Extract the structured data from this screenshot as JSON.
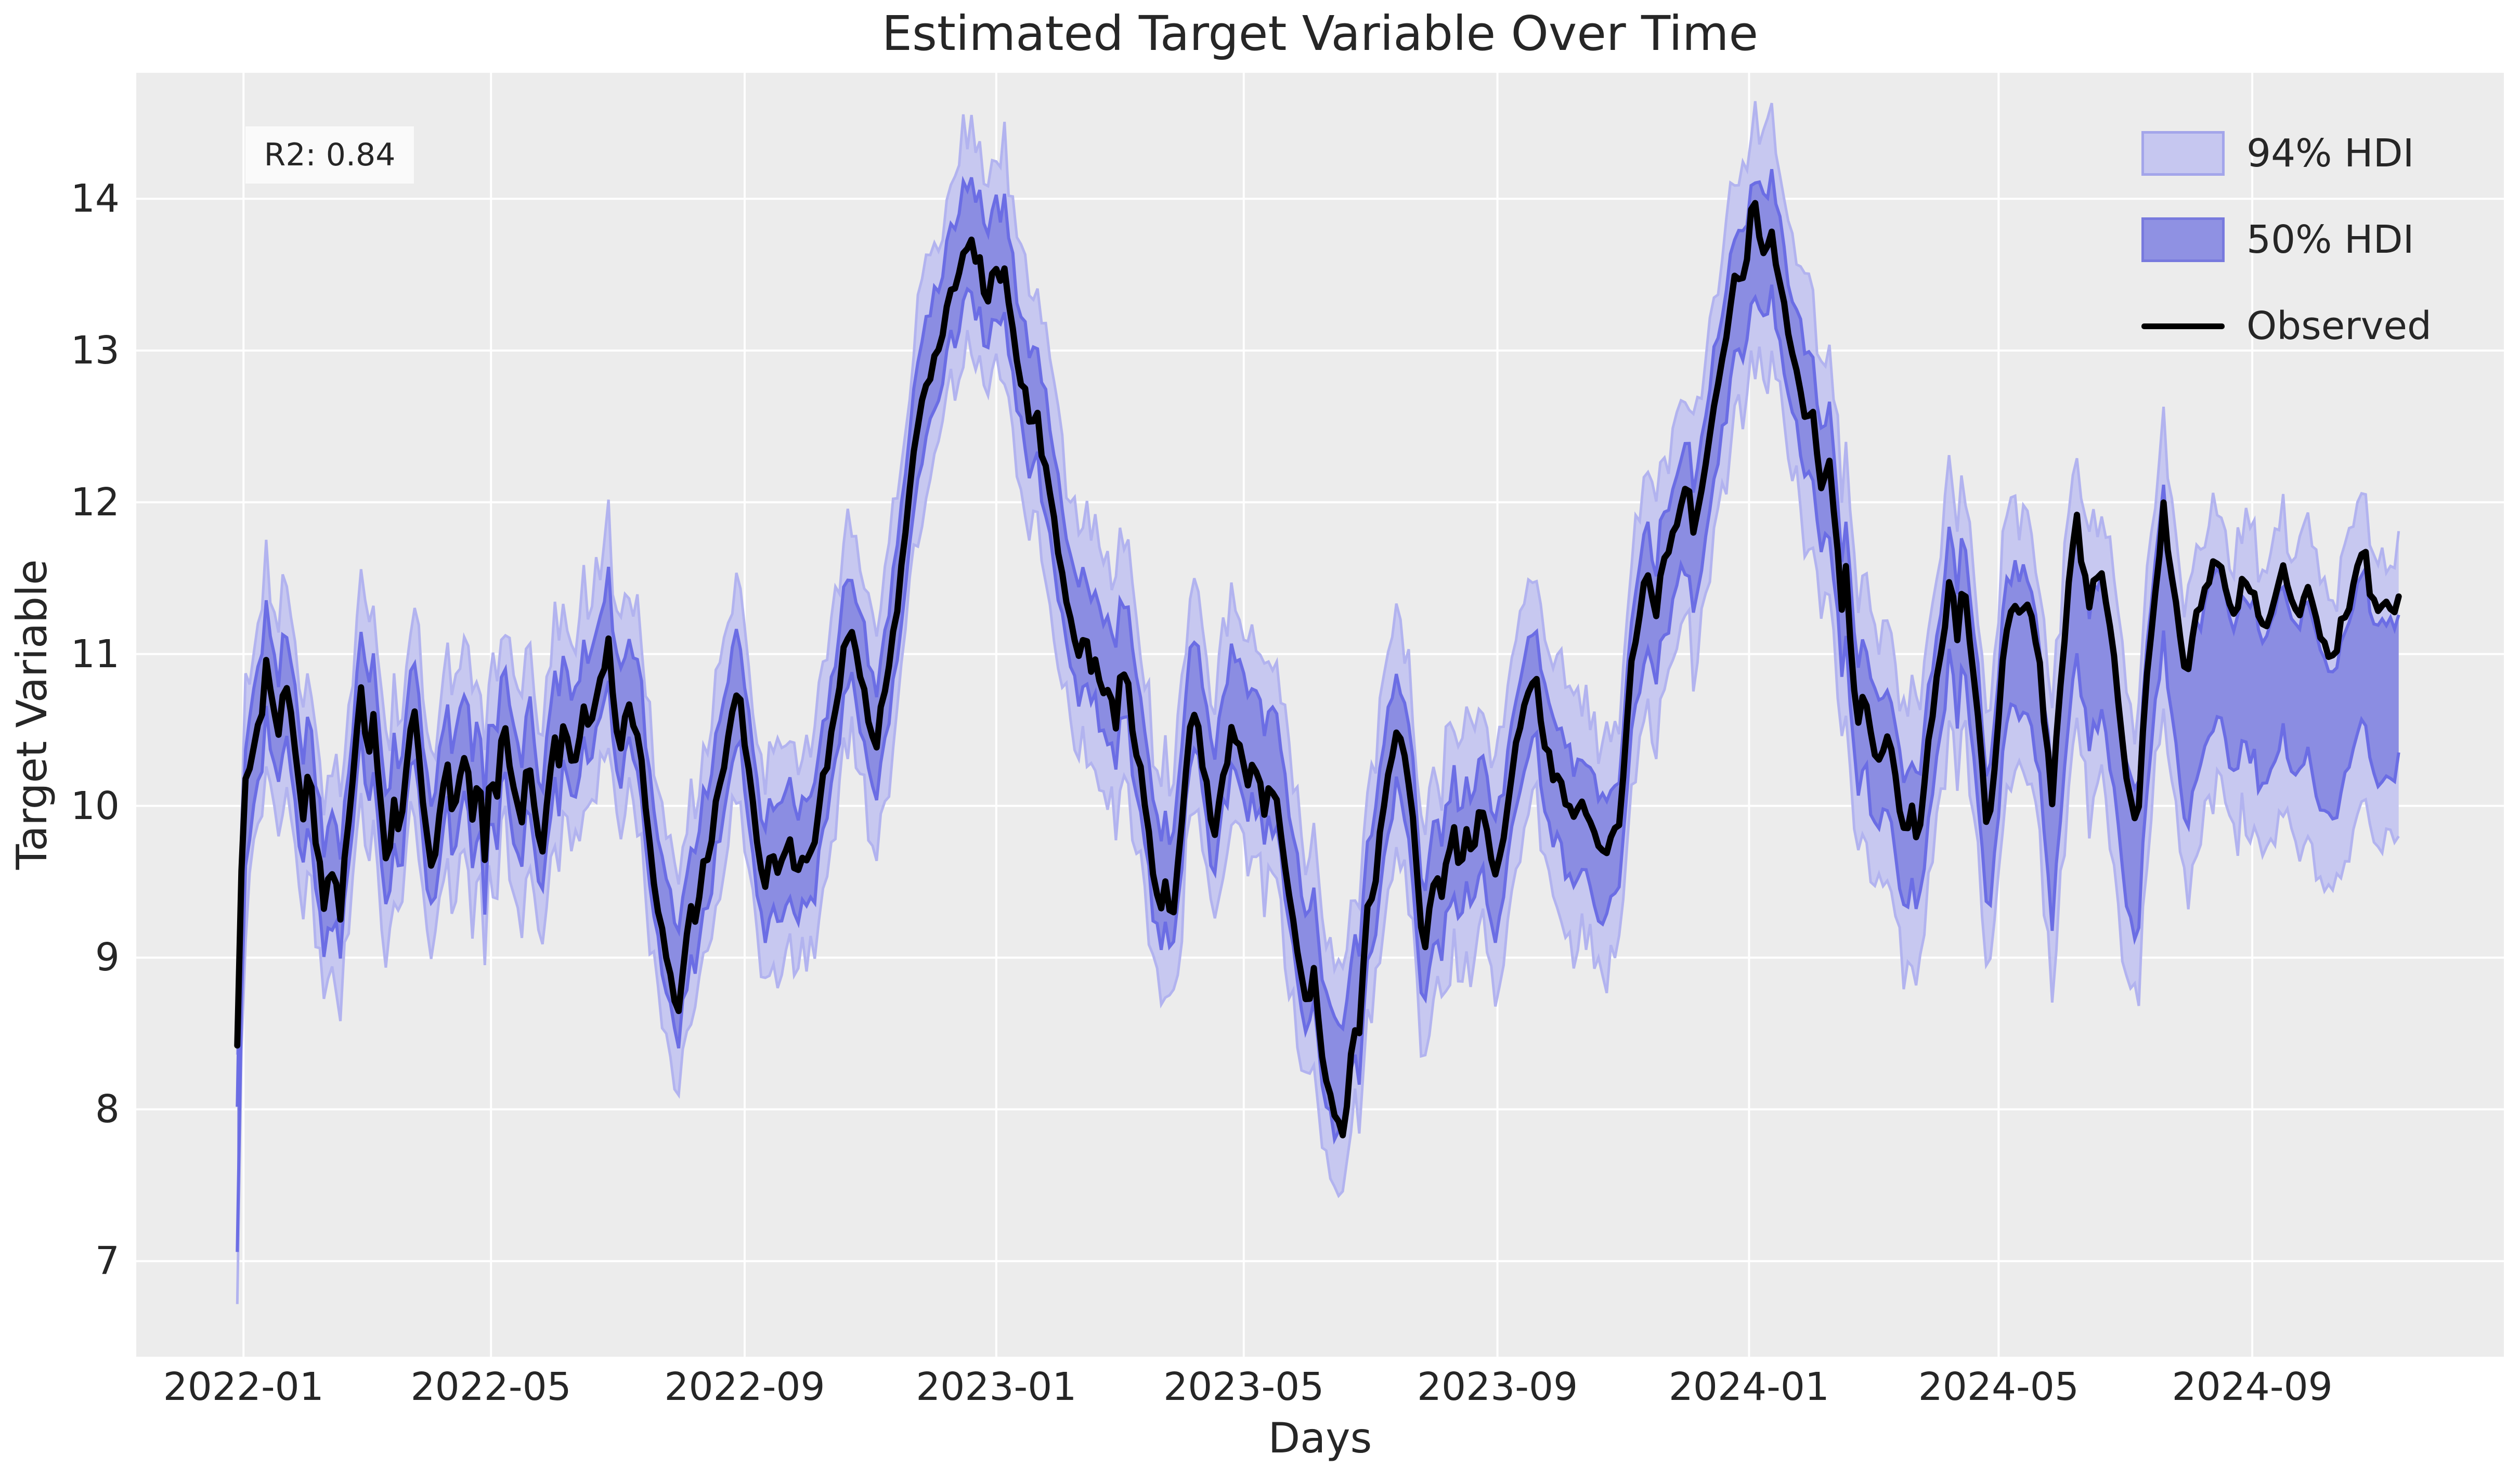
{
  "chart_data": {
    "type": "line",
    "title": "Estimated Target Variable Over Time",
    "xlabel": "Days",
    "ylabel": "Target Variable",
    "annotation": "R2: 0.84",
    "legend": [
      {
        "label": "94% HDI",
        "kind": "band",
        "fill": "#c6c7f0",
        "edge": "#a3a5ea"
      },
      {
        "label": "50% HDI",
        "kind": "band",
        "fill": "#8f91e3",
        "edge": "#787ade"
      },
      {
        "label": "Observed",
        "kind": "line",
        "color": "#000000"
      }
    ],
    "legend_position": "upper right",
    "grid": true,
    "colors": {
      "plot_bg": "#ececec",
      "figure_bg": "#ffffff",
      "grid": "#ffffff",
      "band94_fill": "#c7c8f0",
      "band94_edge": "#b2b3ef",
      "band50_fill": "#8b8de2",
      "band50_edge": "#6b6de4",
      "observed": "#000000",
      "text": "#262626",
      "annotation_bg": "#fafafa"
    },
    "y_ticks": [
      7,
      8,
      9,
      10,
      11,
      12,
      13,
      14
    ],
    "x_ticks": [
      {
        "label": "2022-01",
        "day": 0
      },
      {
        "label": "2022-05",
        "day": 120
      },
      {
        "label": "2022-09",
        "day": 243
      },
      {
        "label": "2023-01",
        "day": 365
      },
      {
        "label": "2023-05",
        "day": 485
      },
      {
        "label": "2023-09",
        "day": 608
      },
      {
        "label": "2024-01",
        "day": 730
      },
      {
        "label": "2024-05",
        "day": 851
      },
      {
        "label": "2024-09",
        "day": 974
      }
    ],
    "x_day0": "2022-01-01",
    "xlim_days": [
      -52,
      1096
    ],
    "ylim": [
      6.37,
      14.83
    ],
    "sample_step_days": 2,
    "data_start_day": -3,
    "data_end_day": 1045,
    "observed_keypoints": [
      [
        -3,
        8.4
      ],
      [
        -2,
        9.15
      ],
      [
        -1,
        9.6
      ],
      [
        0,
        10.0
      ],
      [
        2,
        10.3
      ],
      [
        4,
        10.2
      ],
      [
        6,
        10.5
      ],
      [
        9,
        10.6
      ],
      [
        11,
        10.95
      ],
      [
        14,
        10.7
      ],
      [
        17,
        10.5
      ],
      [
        20,
        10.8
      ],
      [
        23,
        10.6
      ],
      [
        26,
        10.3
      ],
      [
        29,
        9.95
      ],
      [
        32,
        10.3
      ],
      [
        35,
        9.8
      ],
      [
        39,
        9.35
      ],
      [
        43,
        9.6
      ],
      [
        47,
        9.3
      ],
      [
        51,
        9.9
      ],
      [
        55,
        10.45
      ],
      [
        57,
        10.8
      ],
      [
        60,
        10.3
      ],
      [
        63,
        10.55
      ],
      [
        67,
        9.9
      ],
      [
        70,
        9.55
      ],
      [
        73,
        10.1
      ],
      [
        76,
        9.75
      ],
      [
        80,
        10.45
      ],
      [
        83,
        10.6
      ],
      [
        86,
        10.2
      ],
      [
        89,
        9.8
      ],
      [
        92,
        9.55
      ],
      [
        95,
        9.9
      ],
      [
        99,
        10.3
      ],
      [
        102,
        9.9
      ],
      [
        105,
        10.15
      ],
      [
        108,
        10.35
      ],
      [
        111,
        9.9
      ],
      [
        114,
        10.2
      ],
      [
        117,
        9.7
      ],
      [
        120,
        10.25
      ],
      [
        123,
        10.05
      ],
      [
        126,
        10.6
      ],
      [
        129,
        10.3
      ],
      [
        132,
        10.05
      ],
      [
        135,
        9.95
      ],
      [
        138,
        10.35
      ],
      [
        141,
        10.05
      ],
      [
        144,
        9.6
      ],
      [
        147,
        10.0
      ],
      [
        150,
        10.45
      ],
      [
        153,
        10.3
      ],
      [
        156,
        10.55
      ],
      [
        159,
        10.35
      ],
      [
        162,
        10.3
      ],
      [
        165,
        10.65
      ],
      [
        168,
        10.4
      ],
      [
        171,
        10.75
      ],
      [
        174,
        10.9
      ],
      [
        177,
        11.05
      ],
      [
        180,
        10.6
      ],
      [
        183,
        10.35
      ],
      [
        186,
        10.75
      ],
      [
        189,
        10.5
      ],
      [
        192,
        10.4
      ],
      [
        195,
        9.95
      ],
      [
        198,
        9.6
      ],
      [
        201,
        9.3
      ],
      [
        204,
        9.1
      ],
      [
        208,
        8.8
      ],
      [
        211,
        8.7
      ],
      [
        214,
        9.05
      ],
      [
        217,
        9.35
      ],
      [
        220,
        9.25
      ],
      [
        223,
        9.6
      ],
      [
        226,
        9.65
      ],
      [
        229,
        10.0
      ],
      [
        232,
        10.2
      ],
      [
        235,
        10.45
      ],
      [
        238,
        10.75
      ],
      [
        241,
        10.65
      ],
      [
        244,
        10.35
      ],
      [
        247,
        10.0
      ],
      [
        250,
        9.7
      ],
      [
        253,
        9.5
      ],
      [
        256,
        9.75
      ],
      [
        259,
        9.55
      ],
      [
        262,
        9.7
      ],
      [
        265,
        9.75
      ],
      [
        268,
        9.55
      ],
      [
        271,
        9.7
      ],
      [
        274,
        9.65
      ],
      [
        277,
        9.8
      ],
      [
        281,
        10.15
      ],
      [
        285,
        10.45
      ],
      [
        288,
        10.7
      ],
      [
        291,
        11.0
      ],
      [
        294,
        11.2
      ],
      [
        297,
        11.05
      ],
      [
        300,
        10.8
      ],
      [
        303,
        10.55
      ],
      [
        306,
        10.35
      ],
      [
        309,
        10.6
      ],
      [
        312,
        10.9
      ],
      [
        315,
        11.1
      ],
      [
        318,
        11.4
      ],
      [
        321,
        11.8
      ],
      [
        324,
        12.3
      ],
      [
        327,
        12.45
      ],
      [
        330,
        12.7
      ],
      [
        333,
        12.85
      ],
      [
        336,
        13.0
      ],
      [
        339,
        13.15
      ],
      [
        342,
        13.3
      ],
      [
        345,
        13.45
      ],
      [
        348,
        13.6
      ],
      [
        351,
        13.65
      ],
      [
        353,
        13.7
      ],
      [
        355,
        13.6
      ],
      [
        357,
        13.65
      ],
      [
        359,
        13.4
      ],
      [
        361,
        13.3
      ],
      [
        363,
        13.5
      ],
      [
        365,
        13.55
      ],
      [
        367,
        13.45
      ],
      [
        369,
        13.5
      ],
      [
        371,
        13.3
      ],
      [
        373,
        13.1
      ],
      [
        375,
        12.95
      ],
      [
        377,
        12.75
      ],
      [
        379,
        12.8
      ],
      [
        381,
        12.55
      ],
      [
        383,
        12.5
      ],
      [
        385,
        12.6
      ],
      [
        387,
        12.35
      ],
      [
        390,
        12.2
      ],
      [
        393,
        11.9
      ],
      [
        396,
        11.6
      ],
      [
        399,
        11.35
      ],
      [
        402,
        11.2
      ],
      [
        405,
        10.95
      ],
      [
        408,
        11.15
      ],
      [
        411,
        10.85
      ],
      [
        414,
        10.95
      ],
      [
        417,
        10.7
      ],
      [
        420,
        10.8
      ],
      [
        423,
        10.55
      ],
      [
        426,
        10.95
      ],
      [
        429,
        10.75
      ],
      [
        432,
        10.4
      ],
      [
        435,
        10.2
      ],
      [
        438,
        9.9
      ],
      [
        441,
        9.6
      ],
      [
        444,
        9.25
      ],
      [
        447,
        9.5
      ],
      [
        450,
        9.2
      ],
      [
        453,
        9.6
      ],
      [
        456,
        10.1
      ],
      [
        459,
        10.55
      ],
      [
        462,
        10.7
      ],
      [
        465,
        10.3
      ],
      [
        468,
        10.0
      ],
      [
        471,
        9.8
      ],
      [
        474,
        10.15
      ],
      [
        477,
        10.3
      ],
      [
        480,
        10.55
      ],
      [
        483,
        10.35
      ],
      [
        486,
        10.15
      ],
      [
        489,
        10.25
      ],
      [
        492,
        10.2
      ],
      [
        495,
        9.95
      ],
      [
        498,
        10.2
      ],
      [
        501,
        10.0
      ],
      [
        504,
        9.75
      ],
      [
        507,
        9.4
      ],
      [
        510,
        9.1
      ],
      [
        513,
        8.9
      ],
      [
        516,
        8.65
      ],
      [
        519,
        8.9
      ],
      [
        522,
        8.4
      ],
      [
        525,
        8.2
      ],
      [
        528,
        8.05
      ],
      [
        531,
        7.9
      ],
      [
        534,
        7.72
      ],
      [
        536,
        8.2
      ],
      [
        538,
        8.65
      ],
      [
        540,
        8.3
      ],
      [
        543,
        9.0
      ],
      [
        546,
        9.5
      ],
      [
        548,
        9.35
      ],
      [
        551,
        9.8
      ],
      [
        554,
        10.15
      ],
      [
        557,
        10.35
      ],
      [
        560,
        10.5
      ],
      [
        563,
        10.3
      ],
      [
        566,
        10.0
      ],
      [
        569,
        9.6
      ],
      [
        572,
        8.95
      ],
      [
        575,
        9.3
      ],
      [
        578,
        9.55
      ],
      [
        581,
        9.4
      ],
      [
        584,
        9.65
      ],
      [
        587,
        9.8
      ],
      [
        590,
        9.6
      ],
      [
        593,
        9.85
      ],
      [
        596,
        9.7
      ],
      [
        599,
        9.9
      ],
      [
        602,
        9.95
      ],
      [
        605,
        9.7
      ],
      [
        608,
        9.55
      ],
      [
        611,
        9.8
      ],
      [
        614,
        10.15
      ],
      [
        618,
        10.5
      ],
      [
        622,
        10.75
      ],
      [
        626,
        10.9
      ],
      [
        629,
        10.6
      ],
      [
        632,
        10.35
      ],
      [
        635,
        10.2
      ],
      [
        639,
        10.1
      ],
      [
        643,
        10.0
      ],
      [
        646,
        9.9
      ],
      [
        649,
        10.05
      ],
      [
        652,
        9.9
      ],
      [
        655,
        9.8
      ],
      [
        658,
        9.7
      ],
      [
        661,
        9.65
      ],
      [
        664,
        9.9
      ],
      [
        666,
        9.75
      ],
      [
        669,
        10.2
      ],
      [
        673,
        10.9
      ],
      [
        676,
        11.15
      ],
      [
        679,
        11.45
      ],
      [
        682,
        11.5
      ],
      [
        685,
        11.3
      ],
      [
        688,
        11.55
      ],
      [
        691,
        11.7
      ],
      [
        694,
        11.85
      ],
      [
        697,
        11.95
      ],
      [
        700,
        12.1
      ],
      [
        703,
        11.85
      ],
      [
        706,
        12.0
      ],
      [
        709,
        12.2
      ],
      [
        712,
        12.5
      ],
      [
        715,
        12.75
      ],
      [
        718,
        13.05
      ],
      [
        721,
        13.3
      ],
      [
        724,
        13.5
      ],
      [
        727,
        13.45
      ],
      [
        729,
        13.6
      ],
      [
        732,
        14.15
      ],
      [
        734,
        13.9
      ],
      [
        736,
        13.7
      ],
      [
        738,
        13.55
      ],
      [
        740,
        13.8
      ],
      [
        743,
        13.6
      ],
      [
        746,
        13.4
      ],
      [
        749,
        13.15
      ],
      [
        752,
        12.95
      ],
      [
        755,
        12.7
      ],
      [
        758,
        12.45
      ],
      [
        760,
        12.7
      ],
      [
        763,
        12.3
      ],
      [
        766,
        12.05
      ],
      [
        769,
        12.3
      ],
      [
        772,
        11.8
      ],
      [
        775,
        11.35
      ],
      [
        777,
        11.6
      ],
      [
        780,
        10.95
      ],
      [
        783,
        10.55
      ],
      [
        786,
        10.75
      ],
      [
        790,
        10.4
      ],
      [
        794,
        10.3
      ],
      [
        798,
        10.45
      ],
      [
        802,
        10.1
      ],
      [
        806,
        9.78
      ],
      [
        809,
        9.95
      ],
      [
        812,
        9.75
      ],
      [
        816,
        10.3
      ],
      [
        820,
        10.7
      ],
      [
        824,
        11.1
      ],
      [
        828,
        11.55
      ],
      [
        831,
        11.15
      ],
      [
        834,
        11.5
      ],
      [
        838,
        11.0
      ],
      [
        842,
        10.4
      ],
      [
        846,
        9.78
      ],
      [
        850,
        10.4
      ],
      [
        853,
        11.0
      ],
      [
        856,
        11.2
      ],
      [
        859,
        11.35
      ],
      [
        862,
        11.25
      ],
      [
        865,
        11.3
      ],
      [
        868,
        11.2
      ],
      [
        871,
        10.9
      ],
      [
        874,
        10.45
      ],
      [
        877,
        10.0
      ],
      [
        880,
        10.6
      ],
      [
        883,
        11.1
      ],
      [
        886,
        11.6
      ],
      [
        889,
        11.9
      ],
      [
        892,
        11.55
      ],
      [
        895,
        11.3
      ],
      [
        898,
        11.5
      ],
      [
        901,
        11.55
      ],
      [
        904,
        11.3
      ],
      [
        907,
        11.0
      ],
      [
        910,
        10.6
      ],
      [
        913,
        10.2
      ],
      [
        916,
        9.95
      ],
      [
        918,
        9.8
      ],
      [
        921,
        10.5
      ],
      [
        924,
        11.0
      ],
      [
        927,
        11.4
      ],
      [
        929,
        11.7
      ],
      [
        931,
        12.0
      ],
      [
        934,
        11.55
      ],
      [
        937,
        11.35
      ],
      [
        940,
        11.05
      ],
      [
        942,
        10.85
      ],
      [
        945,
        11.1
      ],
      [
        949,
        11.35
      ],
      [
        953,
        11.5
      ],
      [
        957,
        11.65
      ],
      [
        961,
        11.4
      ],
      [
        965,
        11.25
      ],
      [
        969,
        11.45
      ],
      [
        973,
        11.45
      ],
      [
        977,
        11.25
      ],
      [
        980,
        11.1
      ],
      [
        984,
        11.35
      ],
      [
        988,
        11.6
      ],
      [
        992,
        11.35
      ],
      [
        996,
        11.25
      ],
      [
        1000,
        11.4
      ],
      [
        1003,
        11.35
      ],
      [
        1007,
        11.15
      ],
      [
        1010,
        11.05
      ],
      [
        1013,
        10.95
      ],
      [
        1017,
        11.2
      ],
      [
        1021,
        11.35
      ],
      [
        1025,
        11.55
      ],
      [
        1028,
        11.75
      ],
      [
        1031,
        11.45
      ],
      [
        1035,
        11.3
      ],
      [
        1038,
        11.4
      ],
      [
        1041,
        11.25
      ],
      [
        1045,
        11.35
      ]
    ],
    "band_center_offset_keypoints": [
      [
        -3,
        -0.85
      ],
      [
        -1,
        -0.45
      ],
      [
        1,
        -0.15
      ],
      [
        4,
        0
      ],
      [
        200,
        0.1
      ],
      [
        210,
        0.2
      ],
      [
        215,
        0.05
      ],
      [
        300,
        0
      ],
      [
        528,
        0.2
      ],
      [
        534,
        0.4
      ],
      [
        538,
        0.25
      ],
      [
        542,
        0.05
      ],
      [
        560,
        0
      ],
      [
        728,
        -0.1
      ],
      [
        732,
        -0.3
      ],
      [
        735,
        -0.1
      ],
      [
        740,
        0
      ],
      [
        840,
        -0.1
      ],
      [
        860,
        -0.2
      ],
      [
        880,
        -0.4
      ],
      [
        900,
        -0.5
      ],
      [
        915,
        -0.3
      ],
      [
        925,
        -0.25
      ],
      [
        935,
        -0.45
      ],
      [
        945,
        -0.55
      ],
      [
        1000,
        -0.6
      ],
      [
        1045,
        -0.62
      ]
    ],
    "hdi50_halfwidth_keypoints": [
      [
        -3,
        0.45
      ],
      [
        4,
        0.3
      ],
      [
        300,
        0.3
      ],
      [
        400,
        0.33
      ],
      [
        600,
        0.33
      ],
      [
        750,
        0.35
      ],
      [
        850,
        0.38
      ],
      [
        900,
        0.42
      ],
      [
        1045,
        0.45
      ]
    ],
    "hdi94_halfwidth_keypoints": [
      [
        -3,
        0.95
      ],
      [
        4,
        0.68
      ],
      [
        300,
        0.7
      ],
      [
        400,
        0.75
      ],
      [
        600,
        0.75
      ],
      [
        750,
        0.8
      ],
      [
        850,
        0.85
      ],
      [
        900,
        0.92
      ],
      [
        1045,
        0.98
      ]
    ]
  }
}
